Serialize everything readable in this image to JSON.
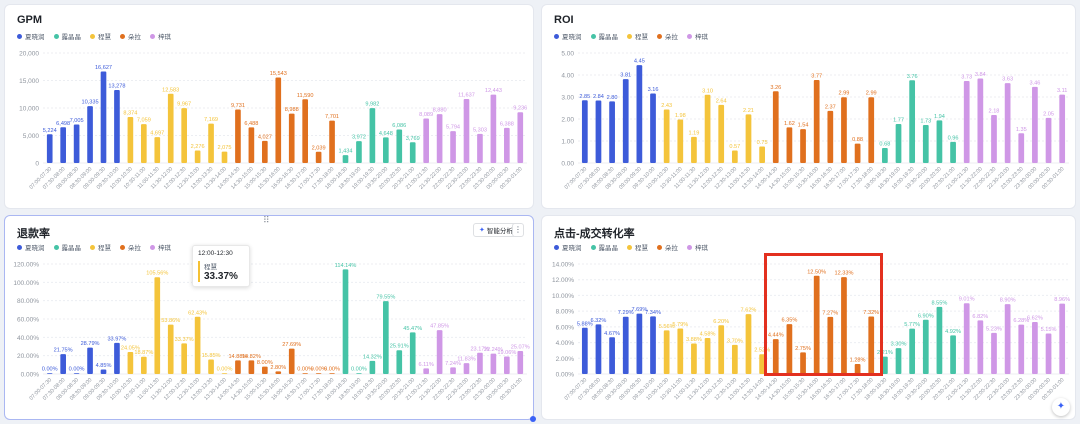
{
  "panels": {
    "gpm": {
      "title": "GPM"
    },
    "roi": {
      "title": "ROI"
    },
    "refund": {
      "title": "退款率"
    },
    "conversion": {
      "title": "点击-成交转化率"
    }
  },
  "legend": [
    {
      "name": "夏晓润",
      "color": "#3d5bd9"
    },
    {
      "name": "露晶晶",
      "color": "#45c3a6"
    },
    {
      "name": "程慧",
      "color": "#f4c43b"
    },
    {
      "name": "朵拉",
      "color": "#e0701e"
    },
    {
      "name": "梓琪",
      "color": "#cf97e6"
    }
  ],
  "toolbar": {
    "ai_label": "智能分析",
    "more_label": "⋮",
    "ai_icon": "sparkle-icon",
    "drag_handle": "⠿",
    "float_icon": "sparkle-icon"
  },
  "tooltip": {
    "time": "12:00-12:30",
    "name": "程慧",
    "value": "33.37%"
  },
  "chart_data": [
    {
      "type": "bar",
      "title": "GPM",
      "categories": [
        "07:00-07:30",
        "07:30-08:00",
        "08:00-08:30",
        "08:30-09:00",
        "09:00-09:30",
        "09:30-10:00",
        "10:00-10:30",
        "10:30-11:00",
        "11:00-11:30",
        "11:30-12:00",
        "12:00-12:30",
        "12:30-13:00",
        "13:00-13:30",
        "13:30-14:00",
        "14:00-14:30",
        "14:30-15:00",
        "15:00-15:30",
        "15:30-16:00",
        "16:00-16:30",
        "16:30-17:00",
        "17:00-17:30",
        "17:30-18:00",
        "18:00-18:30",
        "18:30-19:00",
        "19:00-19:30",
        "19:30-20:00",
        "20:00-20:30",
        "20:30-21:00",
        "21:00-21:30",
        "21:30-22:00",
        "22:00-22:30",
        "22:30-23:00",
        "23:00-23:30",
        "23:30-00:00",
        "00:00-00:30",
        "00:30-01:00"
      ],
      "series_index": [
        0,
        0,
        0,
        0,
        0,
        0,
        2,
        2,
        2,
        2,
        2,
        2,
        2,
        2,
        3,
        3,
        3,
        3,
        3,
        3,
        3,
        3,
        1,
        1,
        1,
        1,
        1,
        1,
        4,
        4,
        4,
        4,
        4,
        4,
        4,
        4
      ],
      "values": [
        5224,
        6498,
        7005,
        10335,
        16627,
        13278,
        8374,
        7059,
        4697,
        12583,
        9967,
        2276,
        7169,
        2075,
        9731,
        6488,
        4027,
        15543,
        8988,
        11590,
        2039,
        7701,
        1434,
        3972,
        9982,
        4648,
        6086,
        3769,
        8089,
        8880,
        5794,
        11637,
        5303,
        12443,
        6388,
        9236
      ],
      "labels": [
        "5,224",
        "6,498",
        "7,005",
        "10,335",
        "16,627",
        "13,278",
        "8,374",
        "7,059",
        "4,697",
        "12,583",
        "9,967",
        "2,276",
        "7,169",
        "2,075",
        "9,731",
        "6,488",
        "4,027",
        "15,543",
        "8,988",
        "11,590",
        "2,039",
        "7,701",
        "1,434",
        "3,972",
        "9,982",
        "4,648",
        "6,086",
        "3,769",
        "8,089",
        "8,880",
        "5,794",
        "11,637",
        "5,303",
        "12,443",
        "6,388",
        "9,236"
      ],
      "yticks": [
        "0",
        "5,000",
        "10,000",
        "15,000",
        "20,000"
      ],
      "ylim": [
        0,
        20000
      ]
    },
    {
      "type": "bar",
      "title": "ROI",
      "categories": [
        "07:00-07:30",
        "07:30-08:00",
        "08:00-08:30",
        "08:30-09:00",
        "09:00-09:30",
        "09:30-10:00",
        "10:00-10:30",
        "10:30-11:00",
        "11:00-11:30",
        "11:30-12:00",
        "12:00-12:30",
        "12:30-13:00",
        "13:00-13:30",
        "13:30-14:00",
        "14:00-14:30",
        "14:30-15:00",
        "15:00-15:30",
        "15:30-16:00",
        "16:00-16:30",
        "16:30-17:00",
        "17:00-17:30",
        "17:30-18:00",
        "18:00-18:30",
        "18:30-19:00",
        "19:00-19:30",
        "19:30-20:00",
        "20:00-20:30",
        "20:30-21:00",
        "21:00-21:30",
        "21:30-22:00",
        "22:00-22:30",
        "22:30-23:00",
        "23:00-23:30",
        "23:30-00:00",
        "00:00-00:30",
        "00:30-01:00"
      ],
      "series_index": [
        0,
        0,
        0,
        0,
        0,
        0,
        2,
        2,
        2,
        2,
        2,
        2,
        2,
        2,
        3,
        3,
        3,
        3,
        3,
        3,
        3,
        3,
        1,
        1,
        1,
        1,
        1,
        1,
        4,
        4,
        4,
        4,
        4,
        4,
        4,
        4
      ],
      "values": [
        2.85,
        2.84,
        2.8,
        3.81,
        4.45,
        3.16,
        2.43,
        1.98,
        1.19,
        3.1,
        2.64,
        0.57,
        2.21,
        0.75,
        3.26,
        1.62,
        1.54,
        3.77,
        2.37,
        2.99,
        0.88,
        2.99,
        0.68,
        1.77,
        3.76,
        1.73,
        1.94,
        0.96,
        3.73,
        3.84,
        2.18,
        3.63,
        1.35,
        3.46,
        2.05,
        3.11
      ],
      "labels": [
        "2.85",
        "2.84",
        "2.80",
        "3.81",
        "4.45",
        "3.16",
        "2.43",
        "1.98",
        "1.19",
        "3.10",
        "2.64",
        "0.57",
        "2.21",
        "0.75",
        "3.26",
        "1.62",
        "1.54",
        "3.77",
        "2.37",
        "2.99",
        "0.88",
        "2.99",
        "0.68",
        "1.77",
        "3.76",
        "1.73",
        "1.94",
        "0.96",
        "3.73",
        "3.84",
        "2.18",
        "3.63",
        "1.35",
        "3.46",
        "2.05",
        "3.11"
      ],
      "yticks": [
        "0.00",
        "1.00",
        "2.00",
        "3.00",
        "4.00",
        "5.00"
      ],
      "ylim": [
        0,
        5
      ]
    },
    {
      "type": "bar",
      "title": "退款率",
      "categories": [
        "07:00-07:30",
        "07:30-08:00",
        "08:00-08:30",
        "08:30-09:00",
        "09:00-09:30",
        "09:30-10:00",
        "10:00-10:30",
        "10:30-11:00",
        "11:00-11:30",
        "11:30-12:00",
        "12:00-12:30",
        "12:30-13:00",
        "13:00-13:30",
        "13:30-14:00",
        "14:00-14:30",
        "14:30-15:00",
        "15:00-15:30",
        "15:30-16:00",
        "16:00-16:30",
        "16:30-17:00",
        "17:00-17:30",
        "17:30-18:00",
        "18:00-18:30",
        "18:30-19:00",
        "19:00-19:30",
        "19:30-20:00",
        "20:00-20:30",
        "20:30-21:00",
        "21:00-21:30",
        "21:30-22:00",
        "22:00-22:30",
        "22:30-23:00",
        "23:00-23:30",
        "23:30-00:00",
        "00:00-00:30",
        "00:30-01:00"
      ],
      "series_index": [
        0,
        0,
        0,
        0,
        0,
        0,
        2,
        2,
        2,
        2,
        2,
        2,
        2,
        2,
        3,
        3,
        3,
        3,
        3,
        3,
        3,
        3,
        1,
        1,
        1,
        1,
        1,
        1,
        4,
        4,
        4,
        4,
        4,
        4,
        4,
        4
      ],
      "values": [
        0.0,
        21.75,
        0.0,
        28.79,
        4.85,
        33.97,
        24.05,
        18.87,
        105.56,
        53.86,
        33.37,
        62.43,
        15.85,
        0.0,
        14.88,
        14.82,
        8.0,
        2.8,
        27.69,
        0.0,
        0.0,
        0.0,
        114.14,
        0.0,
        14.32,
        79.55,
        25.91,
        45.47,
        6.11,
        47.85,
        7.24,
        11.83,
        23.17,
        22.24,
        19.06,
        25.07
      ],
      "labels": [
        "0.00%",
        "21.75%",
        "0.00%",
        "28.79%",
        "4.85%",
        "33.97%",
        "24.05%",
        "18.87%",
        "105.56%",
        "53.86%",
        "33.37%",
        "62.43%",
        "15.85%",
        "0.00%",
        "14.88%",
        "14.82%",
        "8.00%",
        "2.80%",
        "27.69%",
        "0.00%",
        "0.00%",
        "0.00%",
        "114.14%",
        "0.00%",
        "14.32%",
        "79.55%",
        "25.91%",
        "45.47%",
        "6.11%",
        "47.85%",
        "7.24%",
        "11.83%",
        "23.17%",
        "22.24%",
        "19.06%",
        "25.07%"
      ],
      "yticks": [
        "0.00%",
        "20.00%",
        "40.00%",
        "60.00%",
        "80.00%",
        "100.00%",
        "120.00%"
      ],
      "ylim": [
        0,
        120
      ]
    },
    {
      "type": "bar",
      "title": "点击-成交转化率",
      "categories": [
        "07:00-07:30",
        "07:30-08:00",
        "08:00-08:30",
        "08:30-09:00",
        "09:00-09:30",
        "09:30-10:00",
        "10:00-10:30",
        "10:30-11:00",
        "11:00-11:30",
        "11:30-12:00",
        "12:00-12:30",
        "12:30-13:00",
        "13:00-13:30",
        "13:30-14:00",
        "14:00-14:30",
        "14:30-15:00",
        "15:00-15:30",
        "15:30-16:00",
        "16:00-16:30",
        "16:30-17:00",
        "17:00-17:30",
        "17:30-18:00",
        "18:00-18:30",
        "18:30-19:00",
        "19:00-19:30",
        "19:30-20:00",
        "20:00-20:30",
        "20:30-21:00",
        "21:00-21:30",
        "21:30-22:00",
        "22:00-22:30",
        "22:30-23:00",
        "23:00-23:30",
        "23:30-00:00",
        "00:00-00:30",
        "00:30-01:00"
      ],
      "series_index": [
        0,
        0,
        0,
        0,
        0,
        0,
        2,
        2,
        2,
        2,
        2,
        2,
        2,
        2,
        3,
        3,
        3,
        3,
        3,
        3,
        3,
        3,
        1,
        1,
        1,
        1,
        1,
        1,
        4,
        4,
        4,
        4,
        4,
        4,
        4,
        4
      ],
      "values": [
        5.88,
        6.32,
        4.67,
        7.29,
        7.69,
        7.34,
        5.56,
        5.79,
        3.88,
        4.58,
        6.2,
        3.7,
        7.62,
        2.52,
        4.44,
        6.35,
        2.75,
        12.5,
        7.27,
        12.33,
        1.28,
        7.32,
        2.21,
        3.3,
        5.77,
        6.9,
        8.55,
        4.92,
        9.01,
        6.82,
        5.23,
        8.9,
        6.28,
        6.62,
        5.15,
        8.96
      ],
      "labels": [
        "5.88%",
        "6.32%",
        "4.67%",
        "7.29%",
        "7.69%",
        "7.34%",
        "5.56%",
        "5.79%",
        "3.88%",
        "4.58%",
        "6.20%",
        "3.70%",
        "7.62%",
        "2.52%",
        "4.44%",
        "6.35%",
        "2.75%",
        "12.50%",
        "7.27%",
        "12.33%",
        "1.28%",
        "7.32%",
        "2.21%",
        "3.30%",
        "5.77%",
        "6.90%",
        "8.55%",
        "4.92%",
        "9.01%",
        "6.82%",
        "5.23%",
        "8.90%",
        "6.28%",
        "6.62%",
        "5.15%",
        "8.96%"
      ],
      "yticks": [
        "0.00%",
        "2.00%",
        "4.00%",
        "6.00%",
        "8.00%",
        "10.00%",
        "12.00%",
        "14.00%"
      ],
      "ylim": [
        0,
        14
      ]
    }
  ]
}
